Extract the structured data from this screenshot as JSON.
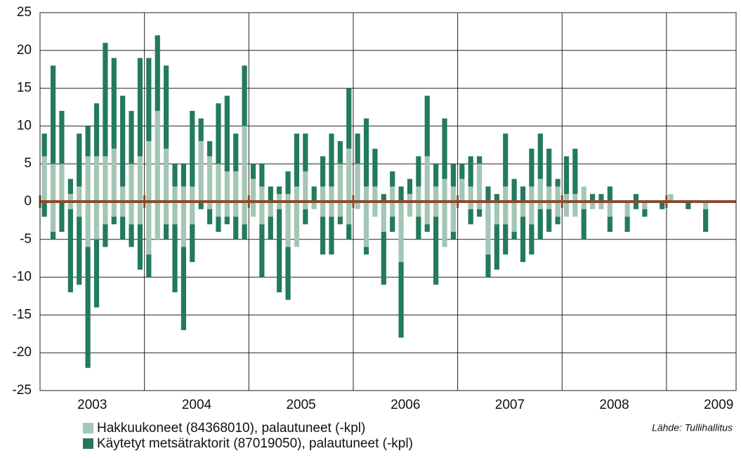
{
  "chart_data": {
    "type": "bar",
    "categories": [
      null,
      null,
      null,
      null,
      null,
      null,
      "2003",
      null,
      null,
      null,
      null,
      null,
      null,
      null,
      null,
      null,
      null,
      null,
      "2004",
      null,
      null,
      null,
      null,
      null,
      null,
      null,
      null,
      null,
      null,
      null,
      "2005",
      null,
      null,
      null,
      null,
      null,
      null,
      null,
      null,
      null,
      null,
      null,
      "2006",
      null,
      null,
      null,
      null,
      null,
      null,
      null,
      null,
      null,
      null,
      null,
      "2007",
      null,
      null,
      null,
      null,
      null,
      null,
      null,
      null,
      null,
      null,
      null,
      "2008",
      null,
      null,
      null,
      null,
      null,
      null,
      null,
      null,
      null,
      null,
      null,
      "2009",
      null
    ],
    "series": [
      {
        "name": "Hakkuukoneet (84368010), palautuneet (-kpl)",
        "color": "#a4c6b4",
        "values": [
          0,
          -4,
          0,
          -1,
          -2,
          -6,
          -5,
          -3,
          -2,
          -2,
          -3,
          -3,
          -7,
          -5,
          -3,
          -3,
          -6,
          -3,
          0,
          -1,
          -2,
          -2,
          -2,
          -3,
          -2,
          -3,
          -2,
          -1,
          -6,
          -6,
          -1,
          -1,
          -2,
          -2,
          -2,
          -3,
          -1,
          -6,
          -2,
          -4,
          -2,
          -8,
          -2,
          -2,
          -3,
          -2,
          -6,
          -4,
          0,
          -1,
          -1,
          -7,
          -3,
          -3,
          -4,
          -2,
          -3,
          -1,
          -1,
          -2,
          -2,
          -2,
          -1,
          -1,
          -1,
          -2,
          0,
          -2,
          0,
          -1,
          0,
          0,
          0,
          0,
          0,
          0,
          -1,
          0,
          0,
          0
        ]
      },
      {
        "name": "Käytetyt metsätraktorit (87019050), palautuneet (-kpl)",
        "color": "#237a5e",
        "values": [
          -2,
          -1,
          -4,
          -11,
          -9,
          -16,
          -9,
          -3,
          -1,
          -3,
          -3,
          -6,
          -3,
          0,
          -2,
          -9,
          -11,
          -5,
          -1,
          -2,
          -2,
          -1,
          -3,
          -2,
          0,
          -7,
          -3,
          -11,
          -7,
          0,
          -2,
          0,
          -5,
          -5,
          -1,
          -2,
          0,
          -1,
          0,
          -7,
          -2,
          -10,
          0,
          -3,
          -1,
          -9,
          0,
          -1,
          0,
          -2,
          -1,
          -3,
          -6,
          -4,
          -1,
          -6,
          -4,
          -4,
          -3,
          -1,
          0,
          0,
          -4,
          0,
          0,
          -2,
          0,
          -2,
          -1,
          -1,
          0,
          -1,
          0,
          0,
          -1,
          0,
          -3,
          0,
          0,
          0
        ]
      },
      {
        "color": "#a4c6b4",
        "values": [
          6,
          5,
          5,
          1,
          2,
          6,
          6,
          6,
          7,
          2,
          5,
          6,
          8,
          12,
          7,
          2,
          2,
          2,
          8,
          6,
          5,
          4,
          4,
          10,
          3,
          2,
          0,
          1,
          1,
          2,
          4,
          0,
          2,
          2,
          5,
          7,
          5,
          2,
          2,
          0,
          2,
          0,
          1,
          2,
          6,
          2,
          3,
          2,
          3,
          2,
          5,
          0,
          0,
          2,
          0,
          0,
          2,
          3,
          2,
          2,
          1,
          1,
          2,
          0,
          0,
          0,
          0,
          0,
          0,
          0,
          0,
          0,
          1,
          0,
          0,
          0,
          0,
          0,
          0,
          0
        ]
      },
      {
        "color": "#237a5e",
        "values": [
          3,
          13,
          7,
          2,
          7,
          4,
          7,
          15,
          12,
          12,
          7,
          13,
          11,
          10,
          11,
          3,
          3,
          10,
          3,
          2,
          8,
          10,
          5,
          8,
          2,
          3,
          2,
          1,
          3,
          7,
          5,
          2,
          4,
          7,
          3,
          8,
          4,
          9,
          5,
          1,
          2,
          2,
          2,
          4,
          8,
          3,
          8,
          3,
          2,
          4,
          1,
          2,
          1,
          7,
          3,
          2,
          5,
          6,
          5,
          1,
          5,
          6,
          0,
          1,
          1,
          2,
          0,
          0,
          1,
          0,
          0,
          0,
          0,
          0,
          0,
          0,
          0,
          0,
          0,
          0
        ]
      }
    ],
    "ylim": [
      -25,
      25
    ],
    "yticks": [
      -25,
      -20,
      -15,
      -10,
      -5,
      0,
      5,
      10,
      15,
      20,
      25
    ],
    "grid": true,
    "source": "Lähde: Tullihallitus"
  }
}
